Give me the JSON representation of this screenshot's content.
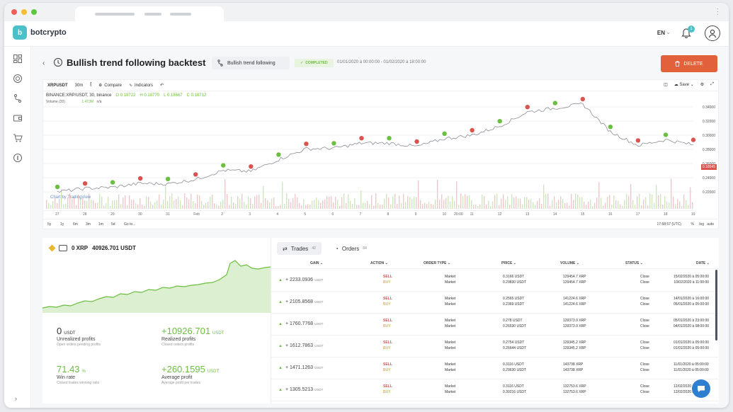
{
  "app": {
    "name": "botcrypto",
    "language": "EN",
    "notification_count": "1"
  },
  "header": {
    "title": "Bullish trend following backtest",
    "strategy": "Bullish trend following",
    "status": "COMPLETED",
    "daterange": "01/01/2020 à 00:00:00 - 01/02/2020 à 18:00:00",
    "delete_label": "DELETE"
  },
  "chart": {
    "toolbar": {
      "symbol": "XRPUSDT",
      "interval": "30m",
      "compare": "Compare",
      "indicators": "Indicators",
      "save": "Save"
    },
    "legend": {
      "title": "BINANCE:XRP/USDT, 30, binance",
      "o": "O 0.18722",
      "h": "H 0.18770",
      "l": "L 0.18667",
      "c": "C 0.18712",
      "volume": "Volume (20)",
      "vol_val": "1.473M",
      "vol_na": "n/a"
    },
    "credit": "Chart by TradingView",
    "price_tag": "0.18545",
    "periods": [
      "5y",
      "1y",
      "6m",
      "3m",
      "1m",
      "5d",
      "Go to..."
    ],
    "time_readout": "17:58:57 (UTC)",
    "axis_buttons": [
      "%",
      "log",
      "auto"
    ]
  },
  "chart_data": {
    "type": "line",
    "x": [
      "27",
      "28",
      "29",
      "30",
      "31",
      "Feb",
      "2",
      "3",
      "4",
      "5",
      "6",
      "7",
      "8",
      "9",
      "10",
      "11",
      "12",
      "13",
      "14",
      "15",
      "16",
      "17",
      "18",
      "19"
    ],
    "x_extra_label": "20:00",
    "y_ticks": [
      "0.34000",
      "0.32000",
      "0.30000",
      "0.28000",
      "0.26000",
      "0.24000",
      "0.22000"
    ],
    "series": [
      {
        "values": [
          0.19,
          0.196,
          0.198,
          0.205,
          0.204,
          0.212,
          0.228,
          0.226,
          0.247,
          0.266,
          0.267,
          0.276,
          0.276,
          0.27,
          0.284,
          0.29,
          0.306,
          0.331,
          0.338,
          0.345,
          0.296,
          0.272,
          0.282,
          0.273
        ]
      }
    ]
  },
  "wallet": {
    "xrp": "0 XRP",
    "usdt": "40926.701 USDT"
  },
  "stats": [
    {
      "value": "0",
      "unit": "USDT",
      "label": "Unrealized profits",
      "sub": "Open orders pending profits"
    },
    {
      "value": "+10926.701",
      "unit": "USDT",
      "label": "Realized profits",
      "sub": "Closed orders profits"
    },
    {
      "value": "71.43",
      "unit": "%",
      "label": "Win rate",
      "sub": "Closed trades winning ratio"
    },
    {
      "value": "+260.1595",
      "unit": "USDT",
      "label": "Average profit",
      "sub": "Average profit per trades"
    }
  ],
  "tabs": [
    {
      "label": "Trades",
      "count": "42"
    },
    {
      "label": "Orders",
      "count": "84"
    }
  ],
  "table": {
    "headers": [
      "GAIN",
      "ACTION",
      "ORDER TYPE",
      "PRICE",
      "VOLUME",
      "STATUS",
      "DATE"
    ],
    "rows": [
      {
        "gain": "+ 2233.0936",
        "unit": "USDT",
        "orders": [
          {
            "action": "SELL",
            "type": "Market",
            "price": "0.3166 USDT",
            "volume": "129454.7 XRP",
            "status": "Close",
            "date": "15/02/2020 à 05:00:00"
          },
          {
            "action": "BUY",
            "type": "Market",
            "price": "0.29830 USDT",
            "volume": "129454.7 XRP",
            "status": "Close",
            "date": "10/02/2020 à 11:00:00"
          }
        ]
      },
      {
        "gain": "+ 2105.8568",
        "unit": "USDT",
        "orders": [
          {
            "action": "SELL",
            "type": "Market",
            "price": "0.2565 USDT",
            "volume": "141224.6 XRP",
            "status": "Close",
            "date": "14/01/2020 à 16:00:00"
          },
          {
            "action": "BUY",
            "type": "Market",
            "price": "0.2369 USDT",
            "volume": "141224.6 XRP",
            "status": "Close",
            "date": "05/01/2020 à 05:00:00"
          }
        ]
      },
      {
        "gain": "+ 1760.7768",
        "unit": "USDT",
        "orders": [
          {
            "action": "SELL",
            "type": "Market",
            "price": "0.278 USDT",
            "volume": "129373.9 XRP",
            "status": "Close",
            "date": "05/01/2020 à 23:00:00"
          },
          {
            "action": "BUY",
            "type": "Market",
            "price": "0.26530 USDT",
            "volume": "129373.9 XRP",
            "status": "Close",
            "date": "04/01/2020 à 08:00:00"
          }
        ]
      },
      {
        "gain": "+ 1612.7863",
        "unit": "USDT",
        "orders": [
          {
            "action": "SELL",
            "type": "Market",
            "price": "0.2754 USDT",
            "volume": "129345.2 XRP",
            "status": "Close",
            "date": "01/01/2020 à 05:00:00"
          },
          {
            "action": "BUY",
            "type": "Market",
            "price": "0.26644 USDT",
            "volume": "129345.2 XRP",
            "status": "Close",
            "date": "01/01/2020 à 05:00:00"
          }
        ]
      },
      {
        "gain": "+ 1471.1263",
        "unit": "USDT",
        "orders": [
          {
            "action": "SELL",
            "type": "Market",
            "price": "0.3116 USDT",
            "volume": "143738 XRP",
            "status": "Close",
            "date": "11/01/2020 à 05:00:00"
          },
          {
            "action": "BUY",
            "type": "Market",
            "price": "0.29630 USDT",
            "volume": "143738 XRP",
            "status": "Close",
            "date": "11/01/2020 à 05:00:00"
          }
        ]
      },
      {
        "gain": "+ 1305.5213",
        "unit": "USDT",
        "orders": [
          {
            "action": "SELL",
            "type": "Market",
            "price": "0.3116 USDT",
            "volume": "132753.6 XRP",
            "status": "Close",
            "date": "12/02/2020 à 05:00:00"
          },
          {
            "action": "BUY",
            "type": "Market",
            "price": "0.30216 USDT",
            "volume": "132753.6 XRP",
            "status": "Close",
            "date": "12/02/2020 à 05:00:00"
          }
        ]
      }
    ]
  },
  "colors": {
    "accent": "#4bc0c8",
    "delete": "#e2603a",
    "profit": "#6bbf3f",
    "sell": "#d9534f",
    "buy": "#e9b731",
    "chat": "#2f7fd1"
  }
}
